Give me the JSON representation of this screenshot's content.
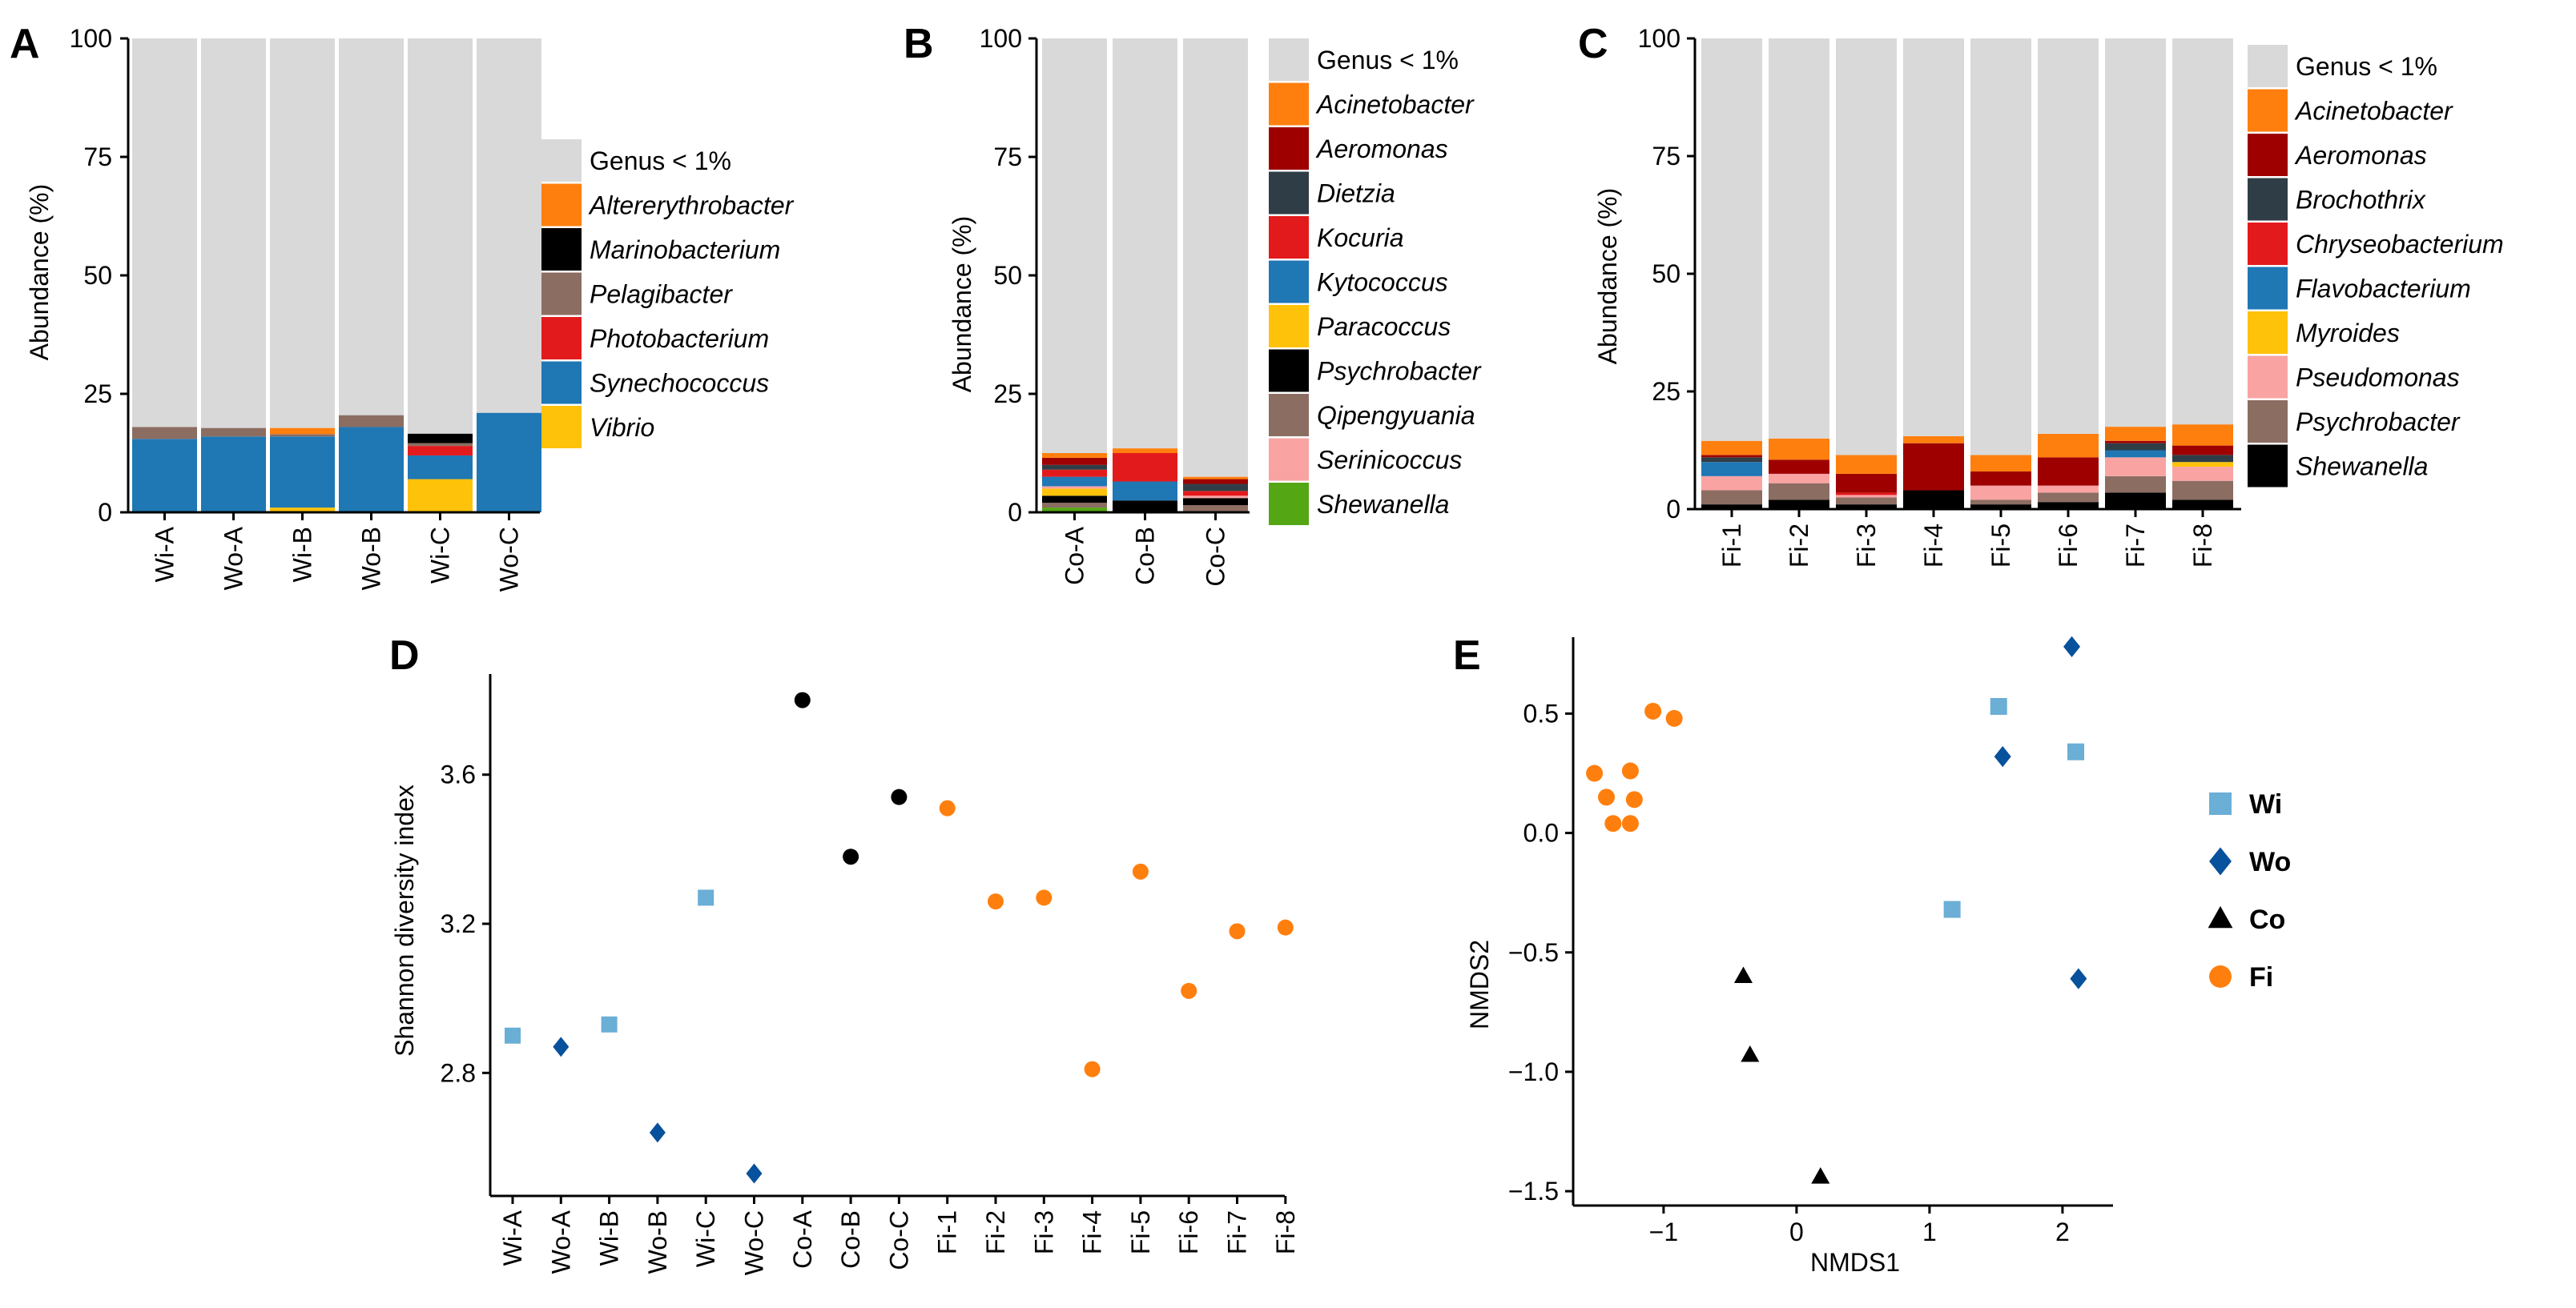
{
  "colors": {
    "genus_lt1": "#d9d9d9",
    "Altererythrobacter": "#ff7f0e",
    "Acinetobacter": "#ff7f0e",
    "Marinobacterium": "#000000",
    "Pelagibacter": "#8c6d62",
    "Photobacterium": "#e31a1c",
    "Synechococcus": "#1f77b4",
    "Vibrio": "#ffc20a",
    "Aeromonas": "#9e0000",
    "Dietzia": "#2f3e46",
    "Kocuria": "#e31a1c",
    "Kytococcus": "#1f77b4",
    "Paracoccus": "#ffc20a",
    "Psychrobacter_B": "#000000",
    "Qipengyuania": "#8c6d62",
    "Serinicoccus": "#f9a3a3",
    "Shewanella_B": "#55a615",
    "Brochothrix": "#2f3e46",
    "Chryseobacterium": "#e31a1c",
    "Flavobacterium": "#1f77b4",
    "Myroides": "#ffc20a",
    "Pseudomonas": "#f9a3a3",
    "Psychrobacter_C": "#8c6d62",
    "Shewanella_C": "#000000",
    "Wi": "#6baed6",
    "Wo": "#08519c",
    "Co": "#000000",
    "Fi": "#ff7f0e"
  },
  "chart_data": [
    {
      "id": "A",
      "type": "bar",
      "stacked": true,
      "panel_label": "A",
      "ylabel": "Abundance (%)",
      "ylim": [
        0,
        100
      ],
      "yticks": [
        "0",
        "25",
        "50",
        "75",
        "100"
      ],
      "categories": [
        "Wi-A",
        "Wo-A",
        "Wi-B",
        "Wo-B",
        "Wi-C",
        "Wo-C"
      ],
      "series": [
        {
          "name": "Vibrio",
          "color_key": "Vibrio",
          "values": [
            0,
            0,
            1,
            0,
            7,
            0
          ]
        },
        {
          "name": "Synechococcus",
          "color_key": "Synechococcus",
          "values": [
            15.5,
            16,
            15,
            18,
            5,
            21
          ]
        },
        {
          "name": "Photobacterium",
          "color_key": "Photobacterium",
          "values": [
            0,
            0,
            0,
            0,
            2,
            0
          ]
        },
        {
          "name": "Pelagibacter",
          "color_key": "Pelagibacter",
          "values": [
            2.5,
            1.8,
            0.5,
            2.5,
            0.6,
            0
          ]
        },
        {
          "name": "Marinobacterium",
          "color_key": "Marinobacterium",
          "values": [
            0,
            0,
            0,
            0,
            2,
            0
          ]
        },
        {
          "name": "Altererythrobacter",
          "color_key": "Altererythrobacter",
          "values": [
            0,
            0,
            1.3,
            0,
            0,
            0
          ]
        },
        {
          "name": "Genus < 1%",
          "color_key": "genus_lt1",
          "values": [
            82,
            82.2,
            82.2,
            79.5,
            83.4,
            79
          ]
        }
      ],
      "legend": [
        "Genus < 1%",
        "Altererythrobacter",
        "Marinobacterium",
        "Pelagibacter",
        "Photobacterium",
        "Synechococcus",
        "Vibrio"
      ],
      "legend_keys": [
        "genus_lt1",
        "Altererythrobacter",
        "Marinobacterium",
        "Pelagibacter",
        "Photobacterium",
        "Synechococcus",
        "Vibrio"
      ]
    },
    {
      "id": "B",
      "type": "bar",
      "stacked": true,
      "panel_label": "B",
      "ylabel": "Abundance (%)",
      "ylim": [
        0,
        100
      ],
      "yticks": [
        "0",
        "25",
        "50",
        "75",
        "100"
      ],
      "categories": [
        "Co-A",
        "Co-B",
        "Co-C"
      ],
      "series": [
        {
          "name": "Shewanella",
          "color_key": "Shewanella_B",
          "values": [
            1,
            0,
            0
          ]
        },
        {
          "name": "Qipengyuania",
          "color_key": "Qipengyuania",
          "values": [
            1,
            0,
            1.5
          ]
        },
        {
          "name": "Psychrobacter",
          "color_key": "Psychrobacter_B",
          "values": [
            1.5,
            2.5,
            1.5
          ]
        },
        {
          "name": "Paracoccus",
          "color_key": "Paracoccus",
          "values": [
            1.5,
            0,
            0
          ]
        },
        {
          "name": "Serinicoccus",
          "color_key": "Serinicoccus",
          "values": [
            0.5,
            0,
            0.5
          ]
        },
        {
          "name": "Kytococcus",
          "color_key": "Kytococcus",
          "values": [
            2,
            4,
            0
          ]
        },
        {
          "name": "Kocuria",
          "color_key": "Kocuria",
          "values": [
            1.5,
            6,
            1
          ]
        },
        {
          "name": "Dietzia",
          "color_key": "Dietzia",
          "values": [
            1,
            0,
            1.5
          ]
        },
        {
          "name": "Aeromonas",
          "color_key": "Aeromonas",
          "values": [
            1.5,
            0,
            1
          ]
        },
        {
          "name": "Acinetobacter",
          "color_key": "Acinetobacter",
          "values": [
            1,
            1,
            0.5
          ]
        },
        {
          "name": "Genus < 1%",
          "color_key": "genus_lt1",
          "values": [
            87.5,
            86.5,
            92.5
          ]
        }
      ],
      "legend": [
        "Genus < 1%",
        "Acinetobacter",
        "Aeromonas",
        "Dietzia",
        "Kocuria",
        "Kytococcus",
        "Paracoccus",
        "Psychrobacter",
        "Qipengyuania",
        "Serinicoccus",
        "Shewanella"
      ],
      "legend_keys": [
        "genus_lt1",
        "Acinetobacter",
        "Aeromonas",
        "Dietzia",
        "Kocuria",
        "Kytococcus",
        "Paracoccus",
        "Psychrobacter_B",
        "Qipengyuania",
        "Serinicoccus",
        "Shewanella_B"
      ]
    },
    {
      "id": "C",
      "type": "bar",
      "stacked": true,
      "panel_label": "C",
      "ylabel": "Abundance (%)",
      "ylim": [
        0,
        100
      ],
      "yticks": [
        "0",
        "25",
        "50",
        "75",
        "100"
      ],
      "categories": [
        "Fi-1",
        "Fi-2",
        "Fi-3",
        "Fi-4",
        "Fi-5",
        "Fi-6",
        "Fi-7",
        "Fi-8"
      ],
      "series": [
        {
          "name": "Shewanella",
          "color_key": "Shewanella_C",
          "values": [
            1,
            2,
            1,
            4,
            1,
            1.5,
            3.5,
            2
          ]
        },
        {
          "name": "Psychrobacter",
          "color_key": "Psychrobacter_C",
          "values": [
            3,
            3.5,
            1.5,
            0,
            1,
            2,
            3.5,
            4
          ]
        },
        {
          "name": "Pseudomonas",
          "color_key": "Pseudomonas",
          "values": [
            3,
            2,
            0.5,
            0,
            3,
            1.5,
            4,
            3
          ]
        },
        {
          "name": "Myroides",
          "color_key": "Myroides",
          "values": [
            0,
            0,
            0,
            0,
            0,
            0,
            0,
            1
          ]
        },
        {
          "name": "Flavobacterium",
          "color_key": "Flavobacterium",
          "values": [
            3,
            0,
            0,
            0,
            0,
            0,
            1.5,
            0
          ]
        },
        {
          "name": "Chryseobacterium",
          "color_key": "Chryseobacterium",
          "values": [
            0,
            0,
            0.5,
            0,
            0,
            0,
            0,
            0
          ]
        },
        {
          "name": "Brochothrix",
          "color_key": "Brochothrix",
          "values": [
            1,
            0,
            0,
            0,
            0,
            0,
            1.5,
            1.5
          ]
        },
        {
          "name": "Aeromonas",
          "color_key": "Aeromonas",
          "values": [
            0.5,
            3,
            4,
            10,
            3,
            6,
            0.5,
            2
          ]
        },
        {
          "name": "Acinetobacter",
          "color_key": "Acinetobacter",
          "values": [
            3,
            4.5,
            4,
            1.5,
            3.5,
            5,
            3,
            4.5
          ]
        },
        {
          "name": "Genus < 1%",
          "color_key": "genus_lt1",
          "values": [
            85.5,
            85,
            88.5,
            84.5,
            88.5,
            84,
            82.5,
            82
          ]
        }
      ],
      "legend": [
        "Genus < 1%",
        "Acinetobacter",
        "Aeromonas",
        "Brochothrix",
        "Chryseobacterium",
        "Flavobacterium",
        "Myroides",
        "Pseudomonas",
        "Psychrobacter",
        "Shewanella"
      ],
      "legend_keys": [
        "genus_lt1",
        "Acinetobacter",
        "Aeromonas",
        "Brochothrix",
        "Chryseobacterium",
        "Flavobacterium",
        "Myroides",
        "Pseudomonas",
        "Psychrobacter_C",
        "Shewanella_C"
      ]
    },
    {
      "id": "D",
      "type": "scatter",
      "panel_label": "D",
      "ylabel": "Shannon diversity index",
      "xlabel": "",
      "ylim": [
        2.47,
        3.87
      ],
      "yticks": [
        "2.8",
        "3.2",
        "3.6"
      ],
      "ytick_values": [
        2.8,
        3.2,
        3.6
      ],
      "categories": [
        "Wi-A",
        "Wo-A",
        "Wi-B",
        "Wo-B",
        "Wi-C",
        "Wo-C",
        "Co-A",
        "Co-B",
        "Co-C",
        "Fi-1",
        "Fi-2",
        "Fi-3",
        "Fi-4",
        "Fi-5",
        "Fi-6",
        "Fi-7",
        "Fi-8"
      ],
      "values": [
        2.9,
        2.87,
        2.93,
        2.64,
        3.27,
        2.53,
        3.8,
        3.38,
        3.54,
        3.51,
        3.26,
        3.27,
        2.81,
        3.34,
        3.02,
        3.18,
        3.19
      ],
      "groups": [
        "Wi",
        "Wo",
        "Wi",
        "Wo",
        "Wi",
        "Wo",
        "Co",
        "Co",
        "Co",
        "Fi",
        "Fi",
        "Fi",
        "Fi",
        "Fi",
        "Fi",
        "Fi",
        "Fi"
      ],
      "markers": [
        "square",
        "diamond",
        "square",
        "diamond",
        "square",
        "diamond",
        "circle",
        "circle",
        "circle",
        "circle",
        "circle",
        "circle",
        "circle",
        "circle",
        "circle",
        "circle",
        "circle"
      ]
    },
    {
      "id": "E",
      "type": "scatter",
      "panel_label": "E",
      "xlabel": "NMDS1",
      "ylabel": "NMDS2",
      "xlim": [
        -1.68,
        2.38
      ],
      "ylim": [
        -1.56,
        0.82
      ],
      "xticks": [
        "−1",
        "0",
        "1",
        "2"
      ],
      "xtick_values": [
        -1,
        0,
        1,
        2
      ],
      "yticks": [
        "0.5",
        "0.0",
        "−0.5",
        "−1.0",
        "−1.5"
      ],
      "ytick_values": [
        0.5,
        0.0,
        -0.5,
        -1.0,
        -1.5
      ],
      "series": [
        {
          "name": "Wi",
          "marker": "square",
          "x": [
            1.52,
            2.1,
            1.17
          ],
          "y": [
            0.53,
            0.34,
            -0.32
          ]
        },
        {
          "name": "Wo",
          "marker": "diamond",
          "x": [
            2.07,
            1.55,
            2.12
          ],
          "y": [
            0.78,
            0.32,
            -0.61
          ]
        },
        {
          "name": "Co",
          "marker": "triangle",
          "x": [
            -0.4,
            -0.35,
            0.18
          ],
          "y": [
            -0.6,
            -0.93,
            -1.44
          ]
        },
        {
          "name": "Fi",
          "marker": "circle",
          "x": [
            -1.08,
            -0.92,
            -1.52,
            -1.43,
            -1.25,
            -1.38,
            -1.22,
            -1.25
          ],
          "y": [
            0.51,
            0.48,
            0.25,
            0.15,
            0.26,
            0.04,
            0.14,
            0.04
          ]
        }
      ],
      "legend": [
        "Wi",
        "Wo",
        "Co",
        "Fi"
      ]
    }
  ]
}
